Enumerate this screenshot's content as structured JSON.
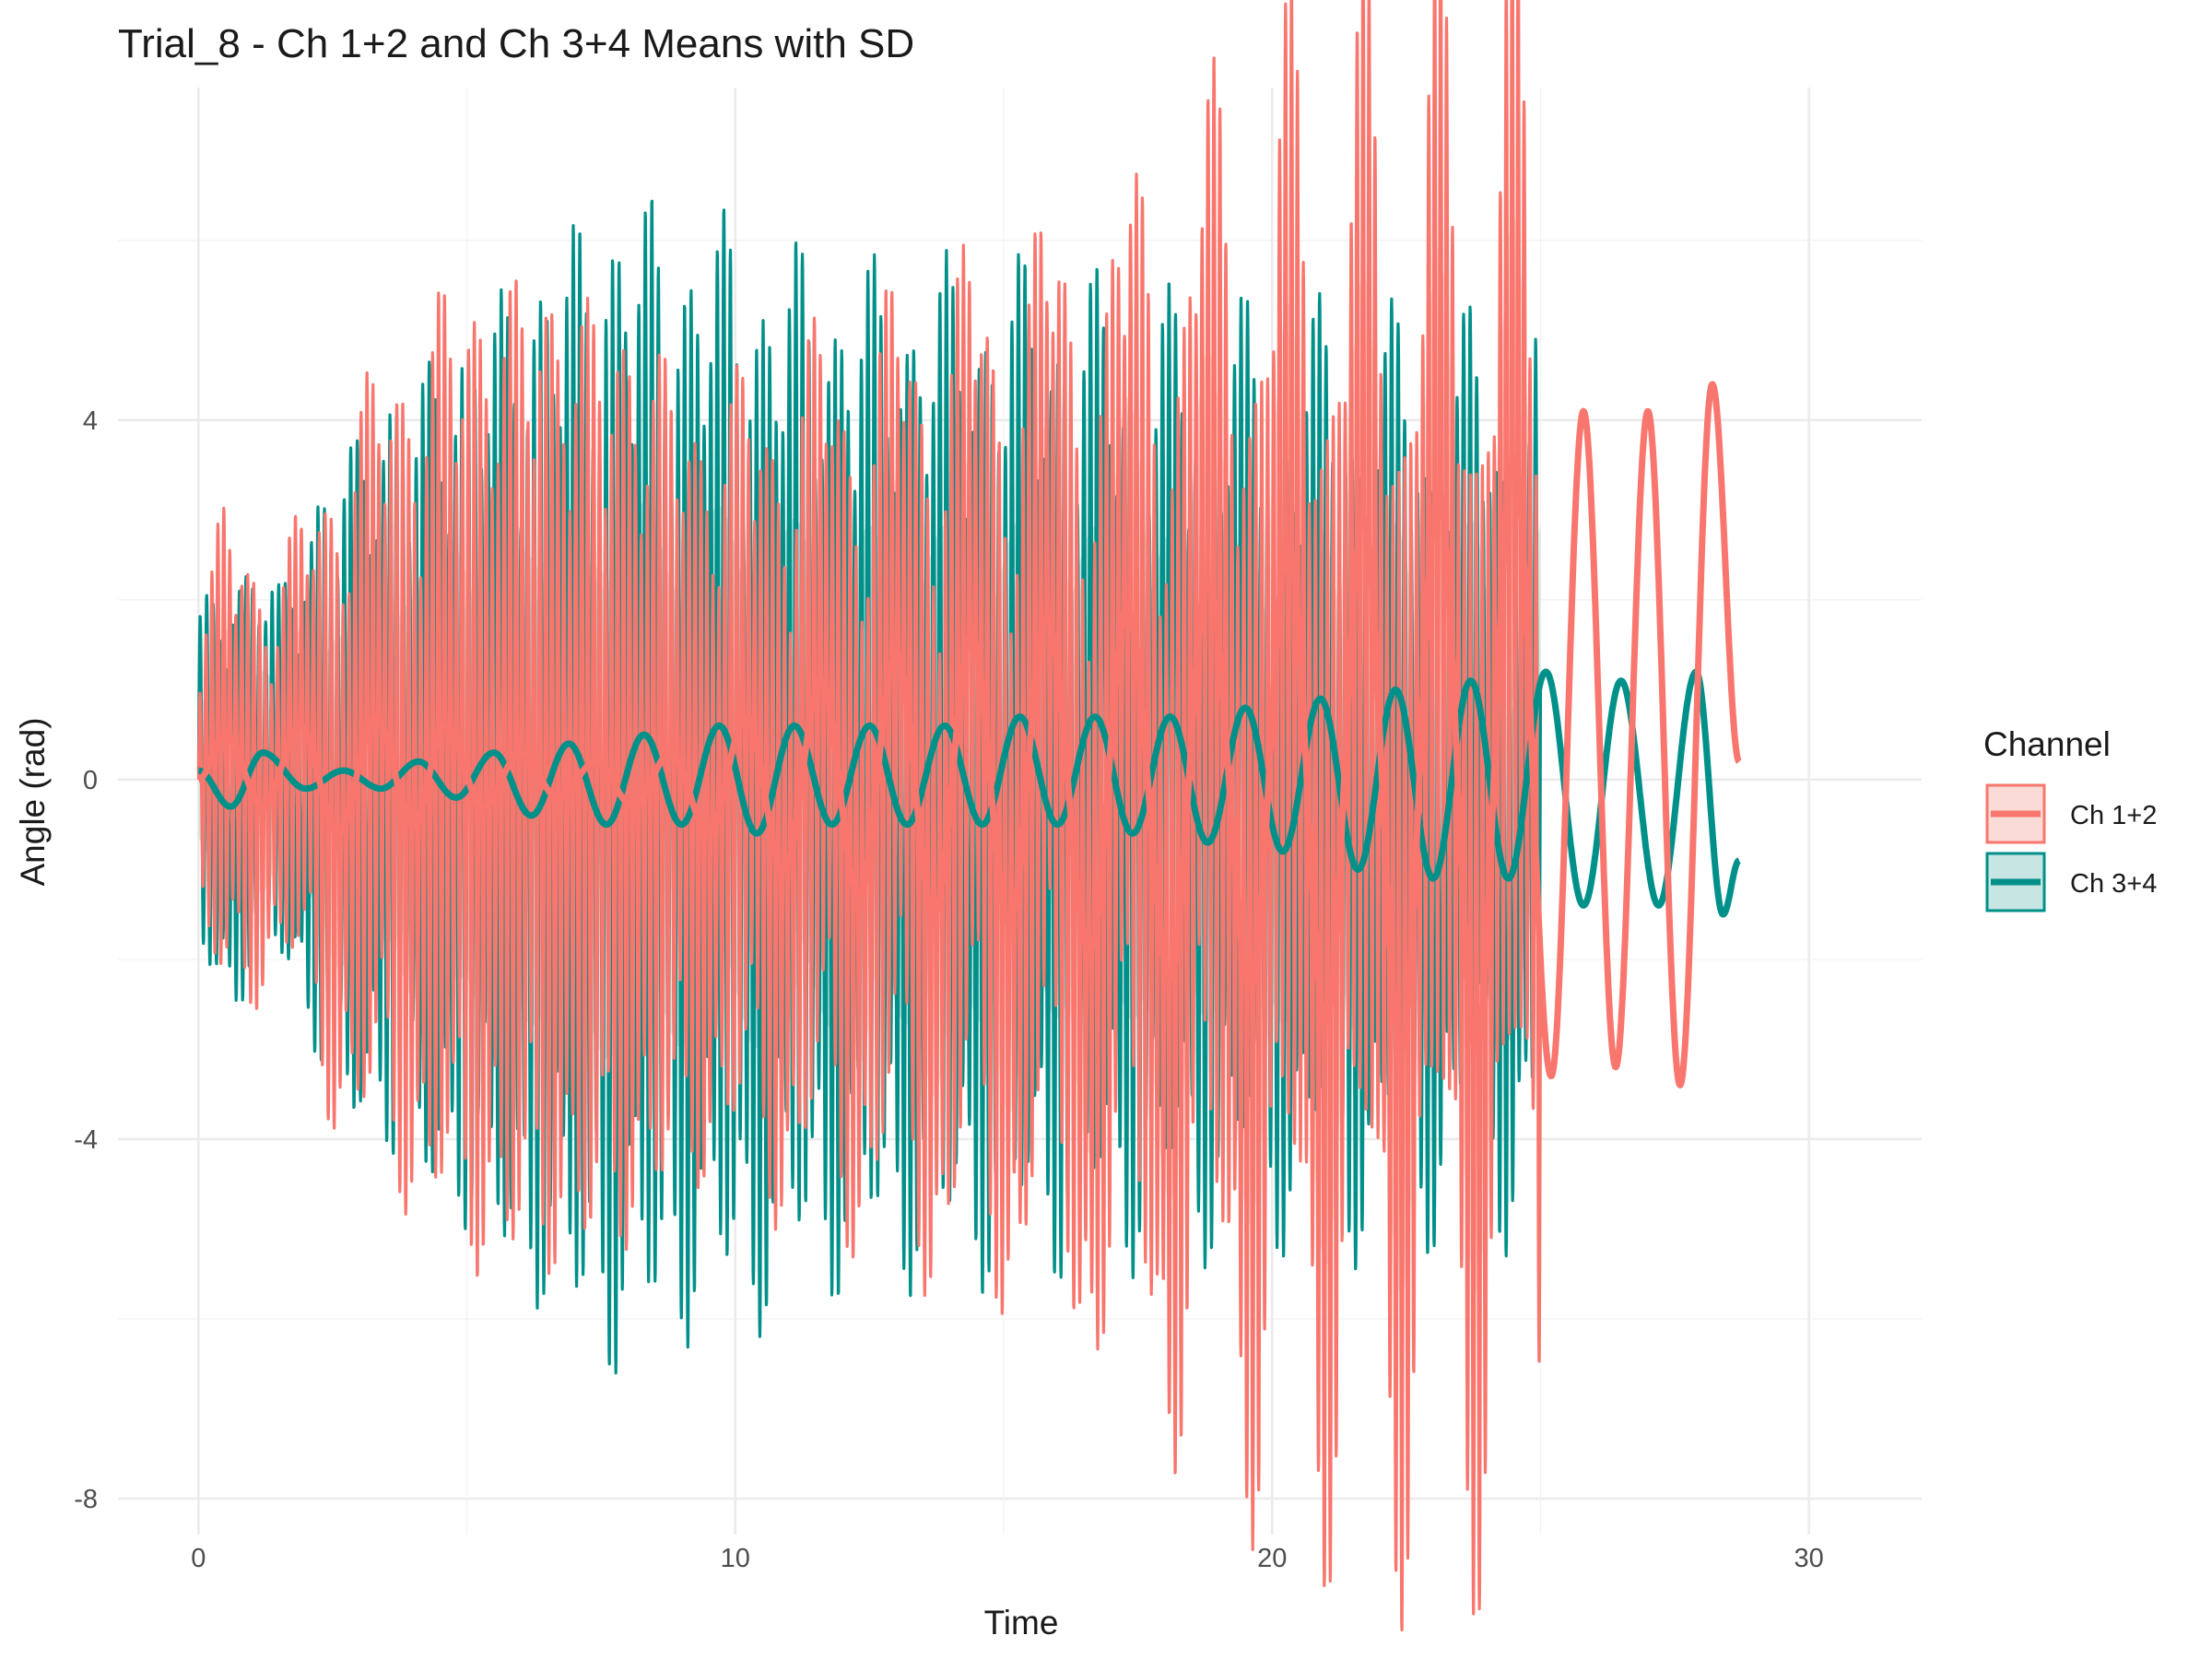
{
  "chart_data": {
    "type": "line",
    "title": "Trial_8 - Ch 1+2 and Ch 3+4 Means with SD",
    "xlabel": "Time",
    "ylabel": "Angle (rad)",
    "xlim": [
      -1.5,
      32.1
    ],
    "ylim": [
      -8.4,
      7.7
    ],
    "x_ticks": [
      0,
      10,
      20,
      30
    ],
    "x_tick_labels": [
      "0",
      "10",
      "20",
      "30"
    ],
    "y_ticks": [
      -8,
      -4,
      0,
      4
    ],
    "y_tick_labels": [
      "-8",
      "-4",
      "0",
      "4"
    ],
    "grid": true,
    "legend_position": "right",
    "legend_title": "Channel",
    "sd_band_end_time": 25,
    "series": [
      {
        "name": "Ch 1+2",
        "color": "#F8766D",
        "fill": "#FADBD8",
        "end_time": 28.7,
        "mean": [
          [
            0.0,
            0.0
          ],
          [
            0.5,
            0.5
          ],
          [
            1.2,
            -0.3
          ],
          [
            1.9,
            0.6
          ],
          [
            2.6,
            -0.6
          ],
          [
            3.3,
            0.7
          ],
          [
            4.0,
            -0.5
          ],
          [
            4.6,
            0.6
          ],
          [
            5.3,
            -0.3
          ],
          [
            6.0,
            0.3
          ],
          [
            6.7,
            -0.2
          ],
          [
            7.4,
            0.2
          ],
          [
            8.1,
            -0.3
          ],
          [
            8.8,
            0.3
          ],
          [
            9.5,
            -0.6
          ],
          [
            10.2,
            0.7
          ],
          [
            10.9,
            -1.0
          ],
          [
            11.6,
            1.1
          ],
          [
            12.3,
            -1.3
          ],
          [
            13.0,
            1.4
          ],
          [
            13.7,
            -1.5
          ],
          [
            14.4,
            1.6
          ],
          [
            15.1,
            -1.6
          ],
          [
            15.8,
            1.8
          ],
          [
            16.6,
            -1.9
          ],
          [
            17.3,
            1.9
          ],
          [
            18.1,
            -2.2
          ],
          [
            18.8,
            2.2
          ],
          [
            19.6,
            -2.3
          ],
          [
            20.3,
            2.6
          ],
          [
            21.0,
            -2.7
          ],
          [
            21.7,
            2.9
          ],
          [
            22.4,
            -3.0
          ],
          [
            23.1,
            3.2
          ],
          [
            23.8,
            -3.0
          ],
          [
            24.5,
            3.6
          ],
          [
            25.2,
            -3.3
          ],
          [
            25.8,
            4.1
          ],
          [
            26.4,
            -3.2
          ],
          [
            27.0,
            4.1
          ],
          [
            27.6,
            -3.4
          ],
          [
            28.2,
            4.4
          ],
          [
            28.7,
            0.2
          ]
        ],
        "sd_envelope": [
          [
            0.0,
            1.5
          ],
          [
            0.5,
            2.8
          ],
          [
            1.5,
            2.0
          ],
          [
            2.5,
            3.5
          ],
          [
            3.5,
            4.3
          ],
          [
            5.0,
            5.3
          ],
          [
            6.5,
            5.4
          ],
          [
            8.0,
            5.0
          ],
          [
            9.5,
            4.0
          ],
          [
            11.0,
            4.3
          ],
          [
            12.5,
            4.5
          ],
          [
            14.0,
            4.9
          ],
          [
            15.5,
            5.1
          ],
          [
            17.0,
            5.5
          ],
          [
            18.5,
            6.1
          ],
          [
            20.0,
            6.4
          ],
          [
            21.5,
            6.5
          ],
          [
            23.0,
            6.5
          ],
          [
            24.5,
            6.4
          ],
          [
            25.0,
            6.0
          ]
        ]
      },
      {
        "name": "Ch 3+4",
        "color": "#00908A",
        "fill": "#C7E5E2",
        "end_time": 28.7,
        "mean": [
          [
            0.0,
            0.1
          ],
          [
            0.6,
            -0.3
          ],
          [
            1.2,
            0.3
          ],
          [
            2.0,
            -0.1
          ],
          [
            2.7,
            0.1
          ],
          [
            3.4,
            -0.1
          ],
          [
            4.1,
            0.2
          ],
          [
            4.8,
            -0.2
          ],
          [
            5.5,
            0.3
          ],
          [
            6.2,
            -0.4
          ],
          [
            6.9,
            0.4
          ],
          [
            7.6,
            -0.5
          ],
          [
            8.3,
            0.5
          ],
          [
            9.0,
            -0.5
          ],
          [
            9.7,
            0.6
          ],
          [
            10.4,
            -0.6
          ],
          [
            11.1,
            0.6
          ],
          [
            11.8,
            -0.5
          ],
          [
            12.5,
            0.6
          ],
          [
            13.2,
            -0.5
          ],
          [
            13.9,
            0.6
          ],
          [
            14.6,
            -0.5
          ],
          [
            15.3,
            0.7
          ],
          [
            16.0,
            -0.5
          ],
          [
            16.7,
            0.7
          ],
          [
            17.4,
            -0.6
          ],
          [
            18.1,
            0.7
          ],
          [
            18.8,
            -0.7
          ],
          [
            19.5,
            0.8
          ],
          [
            20.2,
            -0.8
          ],
          [
            20.9,
            0.9
          ],
          [
            21.6,
            -1.0
          ],
          [
            22.3,
            1.0
          ],
          [
            23.0,
            -1.1
          ],
          [
            23.7,
            1.1
          ],
          [
            24.4,
            -1.1
          ],
          [
            25.1,
            1.2
          ],
          [
            25.8,
            -1.4
          ],
          [
            26.5,
            1.1
          ],
          [
            27.2,
            -1.4
          ],
          [
            27.9,
            1.2
          ],
          [
            28.4,
            -1.5
          ],
          [
            28.7,
            -0.9
          ]
        ],
        "sd_envelope": [
          [
            0.0,
            1.8
          ],
          [
            0.5,
            2.5
          ],
          [
            1.5,
            2.0
          ],
          [
            2.5,
            3.5
          ],
          [
            3.5,
            4.1
          ],
          [
            5.0,
            4.9
          ],
          [
            6.5,
            5.7
          ],
          [
            7.8,
            6.3
          ],
          [
            9.0,
            5.9
          ],
          [
            10.0,
            5.8
          ],
          [
            11.0,
            5.5
          ],
          [
            12.5,
            5.3
          ],
          [
            14.0,
            5.3
          ],
          [
            15.5,
            5.2
          ],
          [
            17.0,
            5.0
          ],
          [
            18.5,
            4.8
          ],
          [
            20.0,
            4.6
          ],
          [
            21.5,
            4.5
          ],
          [
            23.0,
            4.3
          ],
          [
            24.5,
            4.3
          ],
          [
            25.0,
            4.2
          ]
        ]
      }
    ]
  }
}
